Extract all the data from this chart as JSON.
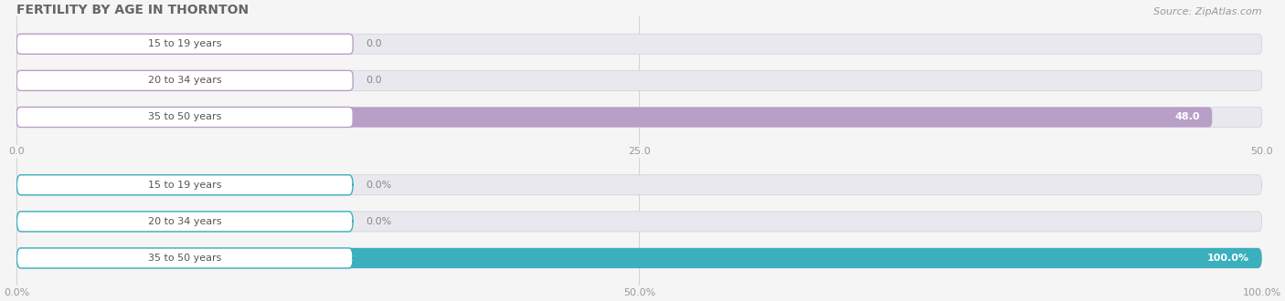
{
  "title": "FERTILITY BY AGE IN THORNTON",
  "source": "Source: ZipAtlas.com",
  "background_color": "#f5f5f5",
  "bar_track_color": "#e8e8ee",
  "top_chart": {
    "categories": [
      "15 to 19 years",
      "20 to 34 years",
      "35 to 50 years"
    ],
    "values": [
      0.0,
      0.0,
      48.0
    ],
    "bar_color": "#b89fc8",
    "border_color": "#b89fc8",
    "xlim": [
      0,
      50
    ],
    "xticks": [
      0.0,
      25.0,
      50.0
    ],
    "xtick_labels": [
      "0.0",
      "25.0",
      "50.0"
    ],
    "value_labels": [
      "0.0",
      "0.0",
      "48.0"
    ]
  },
  "bottom_chart": {
    "categories": [
      "15 to 19 years",
      "20 to 34 years",
      "35 to 50 years"
    ],
    "values": [
      0.0,
      0.0,
      100.0
    ],
    "bar_color": "#3aafbd",
    "border_color": "#3aafbd",
    "xlim": [
      0,
      100
    ],
    "xticks": [
      0.0,
      50.0,
      100.0
    ],
    "xtick_labels": [
      "0.0%",
      "50.0%",
      "100.0%"
    ],
    "value_labels": [
      "0.0%",
      "0.0%",
      "100.0%"
    ]
  },
  "title_fontsize": 10,
  "source_fontsize": 8,
  "cat_fontsize": 8,
  "value_fontsize": 8,
  "tick_fontsize": 8
}
